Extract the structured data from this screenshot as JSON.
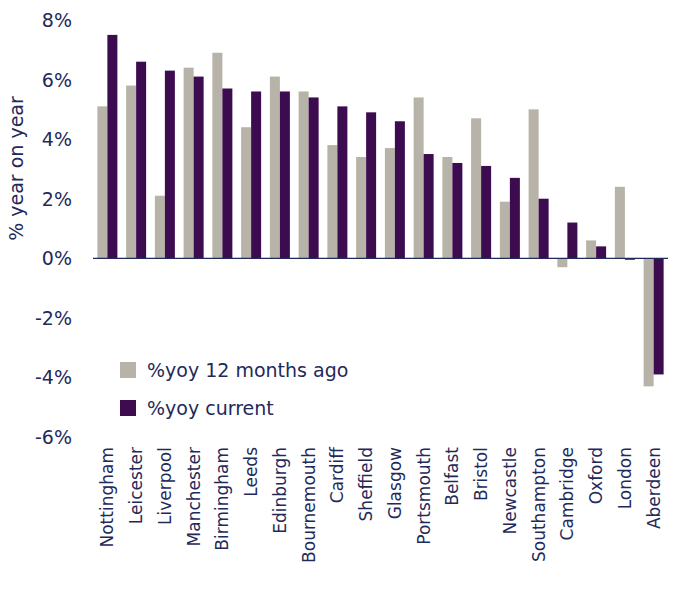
{
  "chart_data": {
    "type": "bar",
    "y_label": "% year on year",
    "categories": [
      "Nottingham",
      "Leicester",
      "Liverpool",
      "Manchester",
      "Birmingham",
      "Leeds",
      "Edinburgh",
      "Bournemouth",
      "Cardiff",
      "Sheffield",
      "Glasgow",
      "Portsmouth",
      "Belfast",
      "Bristol",
      "Newcastle",
      "Southampton",
      "Cambridge",
      "Oxford",
      "London",
      "Aberdeen"
    ],
    "series": [
      {
        "name": "%yoy 12 months ago",
        "color": "#b7b3a8",
        "values": [
          5.1,
          5.8,
          2.1,
          6.4,
          6.9,
          4.4,
          6.1,
          5.6,
          3.8,
          3.4,
          3.7,
          5.4,
          3.4,
          4.7,
          1.9,
          5.0,
          -0.3,
          0.6,
          2.4,
          -4.3
        ]
      },
      {
        "name": "%yoy current",
        "color": "#3d0c50",
        "values": [
          7.5,
          6.6,
          6.3,
          6.1,
          5.7,
          5.6,
          5.6,
          5.4,
          5.1,
          4.9,
          4.6,
          3.5,
          3.2,
          3.1,
          2.7,
          2.0,
          1.2,
          0.4,
          -0.05,
          -3.9
        ]
      }
    ],
    "ylim": [
      -6,
      8
    ],
    "yticks": [
      {
        "value": -6,
        "label": "-6%"
      },
      {
        "value": -4,
        "label": "-4%"
      },
      {
        "value": -2,
        "label": "-2%"
      },
      {
        "value": 0,
        "label": "0%"
      },
      {
        "value": 2,
        "label": "2%"
      },
      {
        "value": 4,
        "label": "4%"
      },
      {
        "value": 6,
        "label": "6%"
      },
      {
        "value": 8,
        "label": "8%"
      }
    ],
    "grid": false,
    "legend": "lower-left"
  }
}
